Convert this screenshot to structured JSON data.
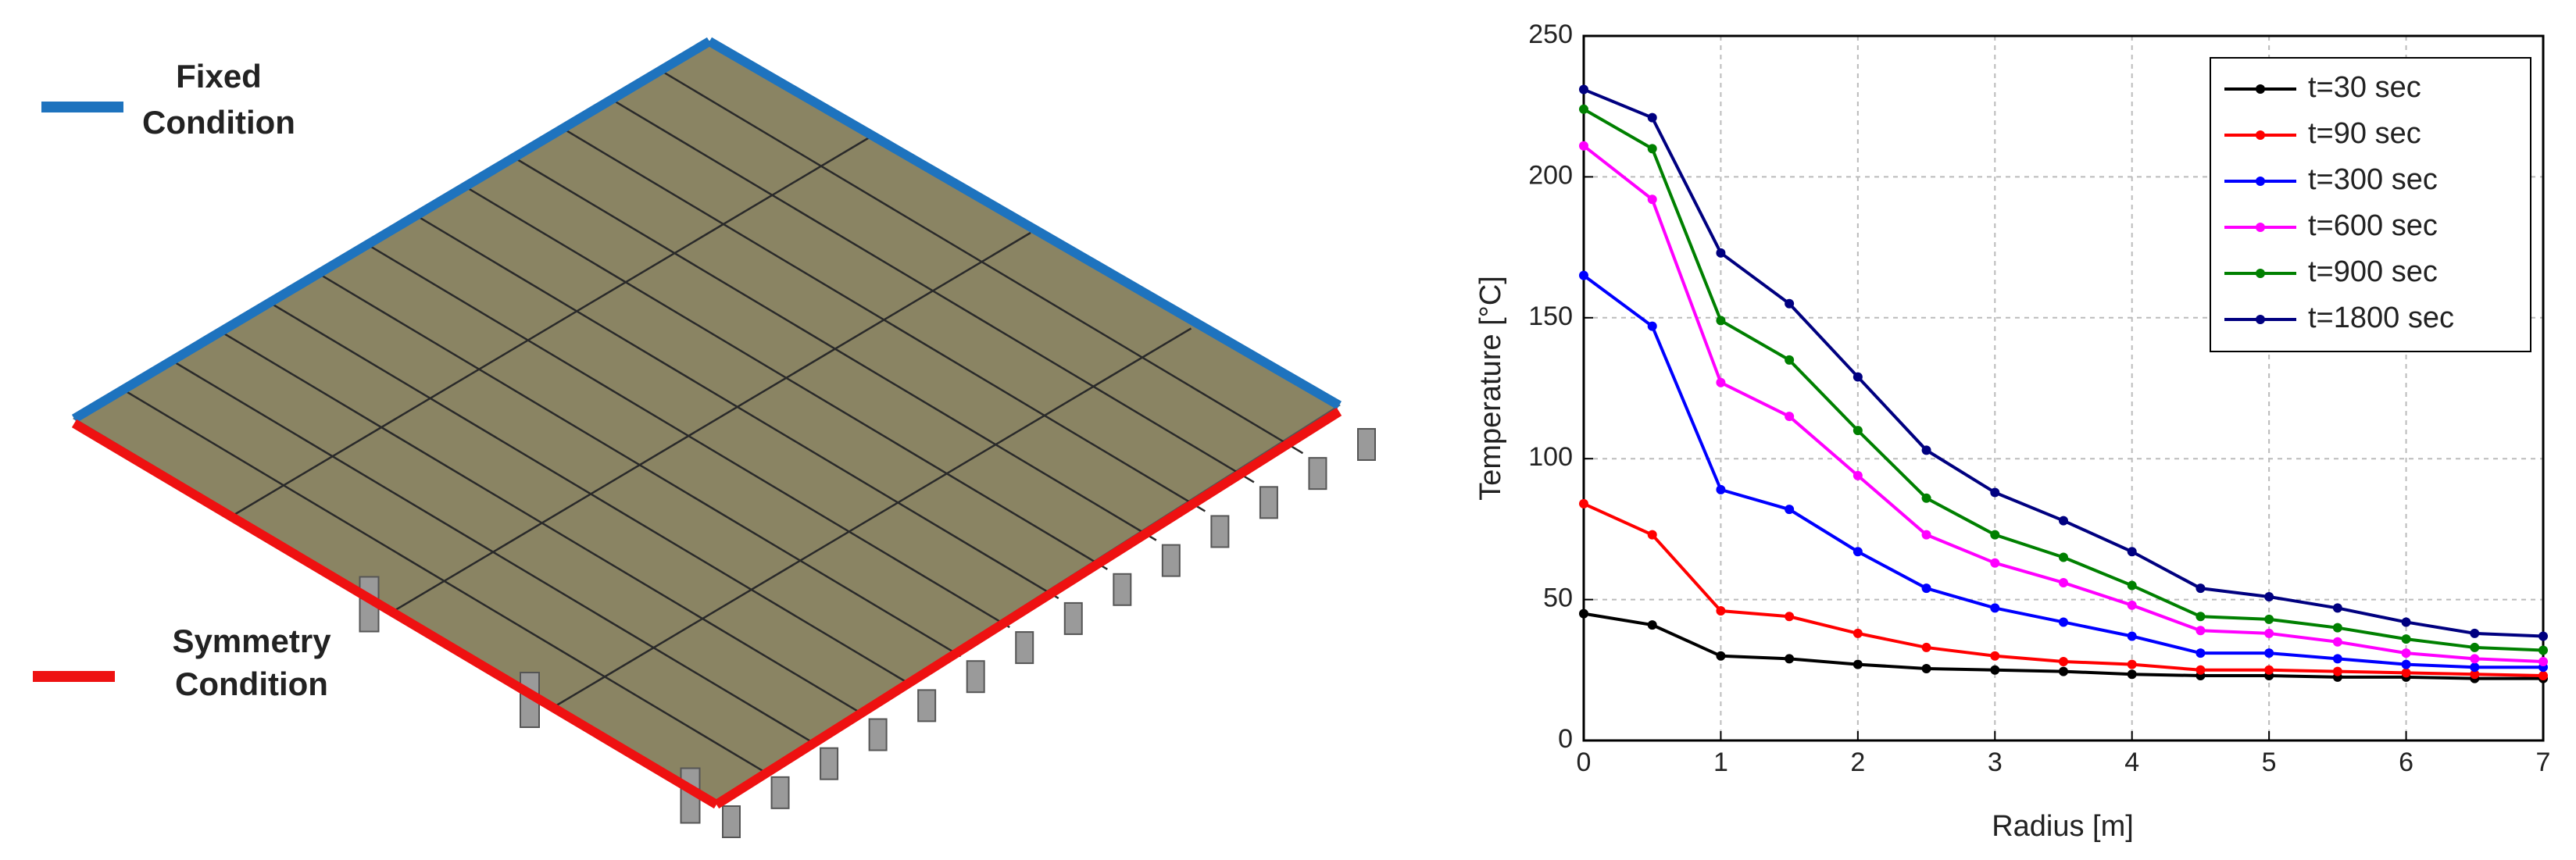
{
  "diagram": {
    "fixed_label": [
      "Fixed",
      "Condition"
    ],
    "symmetry_label": [
      "Symmetry",
      "Condition"
    ]
  },
  "chart_data": {
    "type": "line",
    "x_label": "Radius [m]",
    "y_label": "Temperature [°C]",
    "x": [
      0,
      0.5,
      1,
      1.5,
      2,
      2.5,
      3,
      3.5,
      4,
      4.5,
      5,
      5.5,
      6,
      6.5,
      7
    ],
    "series": [
      {
        "name": "t=30 sec",
        "color": "#000000",
        "values": [
          45,
          41,
          30,
          29,
          27,
          25.5,
          25,
          24.5,
          23.5,
          23,
          23,
          22.5,
          22.5,
          22,
          22
        ]
      },
      {
        "name": "t=90 sec",
        "color": "#ff0000",
        "values": [
          84,
          73,
          46,
          44,
          38,
          33,
          30,
          28,
          27,
          25,
          25,
          24.5,
          24,
          23.5,
          23
        ]
      },
      {
        "name": "t=300 sec",
        "color": "#0000ff",
        "values": [
          165,
          147,
          89,
          82,
          67,
          54,
          47,
          42,
          37,
          31,
          31,
          29,
          27,
          26,
          26
        ]
      },
      {
        "name": "t=600 sec",
        "color": "#ff00ff",
        "values": [
          211,
          192,
          127,
          115,
          94,
          73,
          63,
          56,
          48,
          39,
          38,
          35,
          31,
          29,
          28
        ]
      },
      {
        "name": "t=900 sec",
        "color": "#008000",
        "values": [
          224,
          210,
          149,
          135,
          110,
          86,
          73,
          65,
          55,
          44,
          43,
          40,
          36,
          33,
          32
        ]
      },
      {
        "name": "t=1800 sec",
        "color": "#000080",
        "values": [
          231,
          221,
          173,
          155,
          129,
          103,
          88,
          78,
          67,
          54,
          51,
          47,
          42,
          38,
          37
        ]
      }
    ],
    "xlim": [
      0,
      7
    ],
    "xticks": [
      0,
      1,
      2,
      3,
      4,
      5,
      6,
      7
    ],
    "ylim": [
      0,
      250
    ],
    "yticks": [
      0,
      50,
      100,
      150,
      200,
      250
    ],
    "grid": true,
    "legend": "upper right"
  }
}
